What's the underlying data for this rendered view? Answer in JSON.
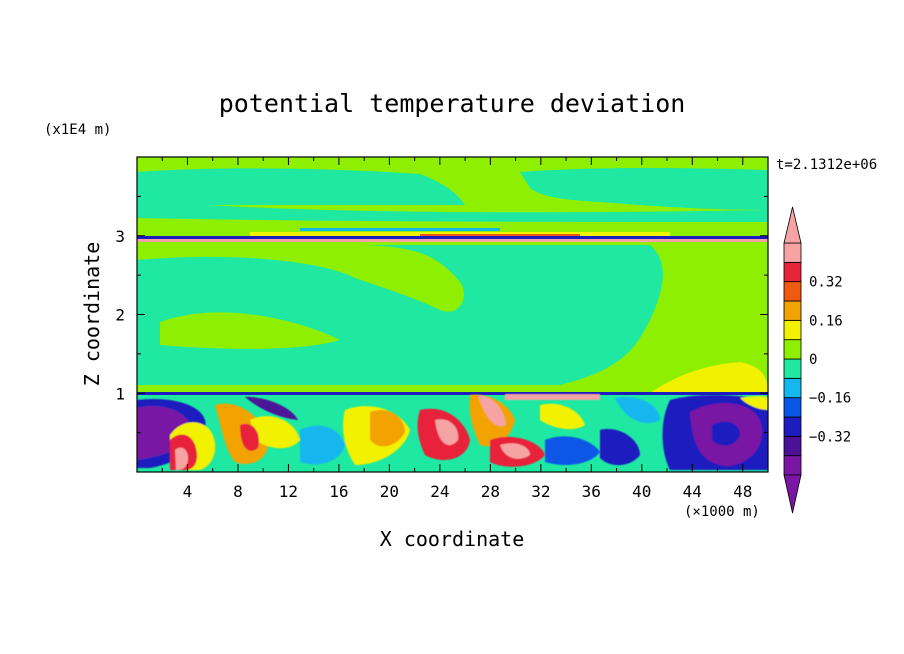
{
  "chart_data": {
    "type": "heatmap",
    "title": "potential temperature deviation",
    "xlabel": "X coordinate",
    "ylabel": "Z coordinate",
    "x_unit": "(×1000 m)",
    "y_unit": "(x1E4 m)",
    "time_label": "t=2.1312e+06",
    "xlim": [
      0,
      50
    ],
    "ylim": [
      0,
      4
    ],
    "x_ticks": [
      "4",
      "8",
      "12",
      "16",
      "20",
      "24",
      "28",
      "32",
      "36",
      "40",
      "44",
      "48"
    ],
    "x_tick_values": [
      4,
      8,
      12,
      16,
      20,
      24,
      28,
      32,
      36,
      40,
      44,
      48
    ],
    "y_ticks": [
      "1",
      "2",
      "3"
    ],
    "y_tick_values": [
      1,
      2,
      3
    ],
    "colorbar": {
      "levels": [
        -0.48,
        -0.4,
        -0.32,
        -0.24,
        -0.16,
        -0.08,
        0,
        0.08,
        0.16,
        0.24,
        0.32,
        0.4,
        0.48
      ],
      "tick_labels": [
        "0.32",
        "0.16",
        "0",
        "−0.16",
        "−0.32"
      ],
      "tick_values": [
        0.32,
        0.16,
        0,
        -0.16,
        -0.32
      ],
      "colors": [
        "#7a16a4",
        "#4b1298",
        "#1c1cbf",
        "#0a57e6",
        "#14b7ee",
        "#1ee8a2",
        "#8ef000",
        "#f2f200",
        "#f3a300",
        "#f05a10",
        "#e8243a",
        "#f5a3a3"
      ],
      "over_color": "#f5a3a3",
      "under_color": "#7a16a4"
    },
    "field_description_levels": {
      "background_upper": 0.0,
      "background_lower_mid": -0.04
    }
  }
}
